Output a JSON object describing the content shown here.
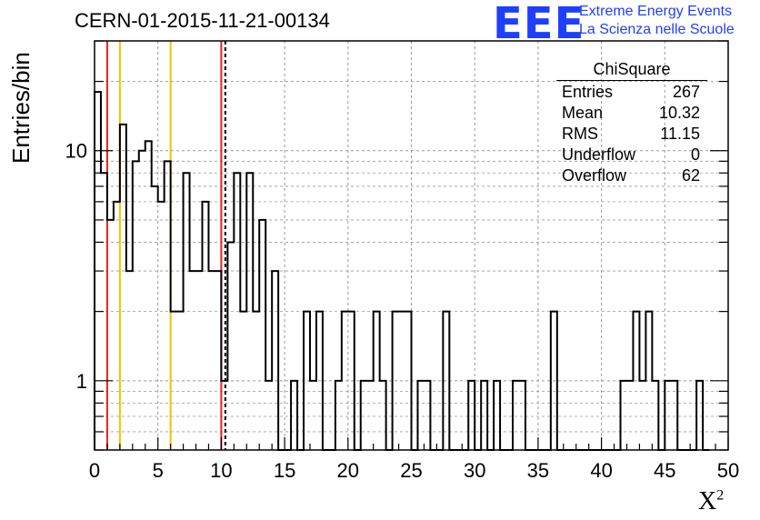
{
  "chart_data": {
    "type": "histogram",
    "title": "CERN-01-2015-11-21-00134",
    "xlabel": "X",
    "xlabel_sup": "2",
    "ylabel": "Entries/bin",
    "xlim": [
      0,
      50
    ],
    "ylog": true,
    "ylim": [
      0.5,
      30
    ],
    "bin_width": 0.5,
    "xticks": [
      "0",
      "5",
      "10",
      "15",
      "20",
      "25",
      "30",
      "35",
      "40",
      "45",
      "50"
    ],
    "yticks": [
      "1",
      "10"
    ],
    "grid": true,
    "values": [
      18,
      8,
      5,
      6,
      13,
      3,
      9,
      10,
      11,
      7,
      6,
      9,
      2,
      2,
      8,
      3,
      3,
      6,
      3,
      3,
      1,
      4,
      8,
      2,
      8,
      2,
      5,
      1,
      3,
      0,
      0,
      1,
      0,
      2,
      1,
      2,
      0,
      0,
      1,
      2,
      2,
      0,
      1,
      1,
      2,
      1,
      0,
      2,
      2,
      2,
      0,
      1,
      1,
      0,
      0,
      2,
      0,
      0,
      0,
      1,
      0,
      1,
      0,
      1,
      0,
      0,
      1,
      1,
      0,
      0,
      0,
      0,
      2,
      0,
      0,
      0,
      0,
      0,
      0,
      0,
      0,
      0,
      0,
      1,
      1,
      2,
      1,
      2,
      1,
      0,
      1,
      1,
      0,
      0,
      0,
      1,
      0
    ],
    "vlines": [
      {
        "x": 1,
        "color": "#e8231a",
        "style": "solid"
      },
      {
        "x": 2,
        "color": "#f2c200",
        "style": "solid"
      },
      {
        "x": 6,
        "color": "#f2c200",
        "style": "solid"
      },
      {
        "x": 10,
        "color": "#e8231a",
        "style": "solid"
      },
      {
        "x": 10.32,
        "color": "#000000",
        "style": "dashed"
      }
    ],
    "stats": {
      "title": "ChiSquare",
      "rows": [
        {
          "label": "Entries",
          "value": "267"
        },
        {
          "label": "Mean",
          "value": "10.32"
        },
        {
          "label": "RMS",
          "value": "11.15"
        },
        {
          "label": "Underflow",
          "value": "0"
        },
        {
          "label": "Overflow",
          "value": "62"
        }
      ]
    }
  },
  "logo": {
    "mark": "EEE",
    "line1": "Extreme Energy Events",
    "line2": "La Scienza nelle Scuole",
    "color": "#1f3fff"
  }
}
